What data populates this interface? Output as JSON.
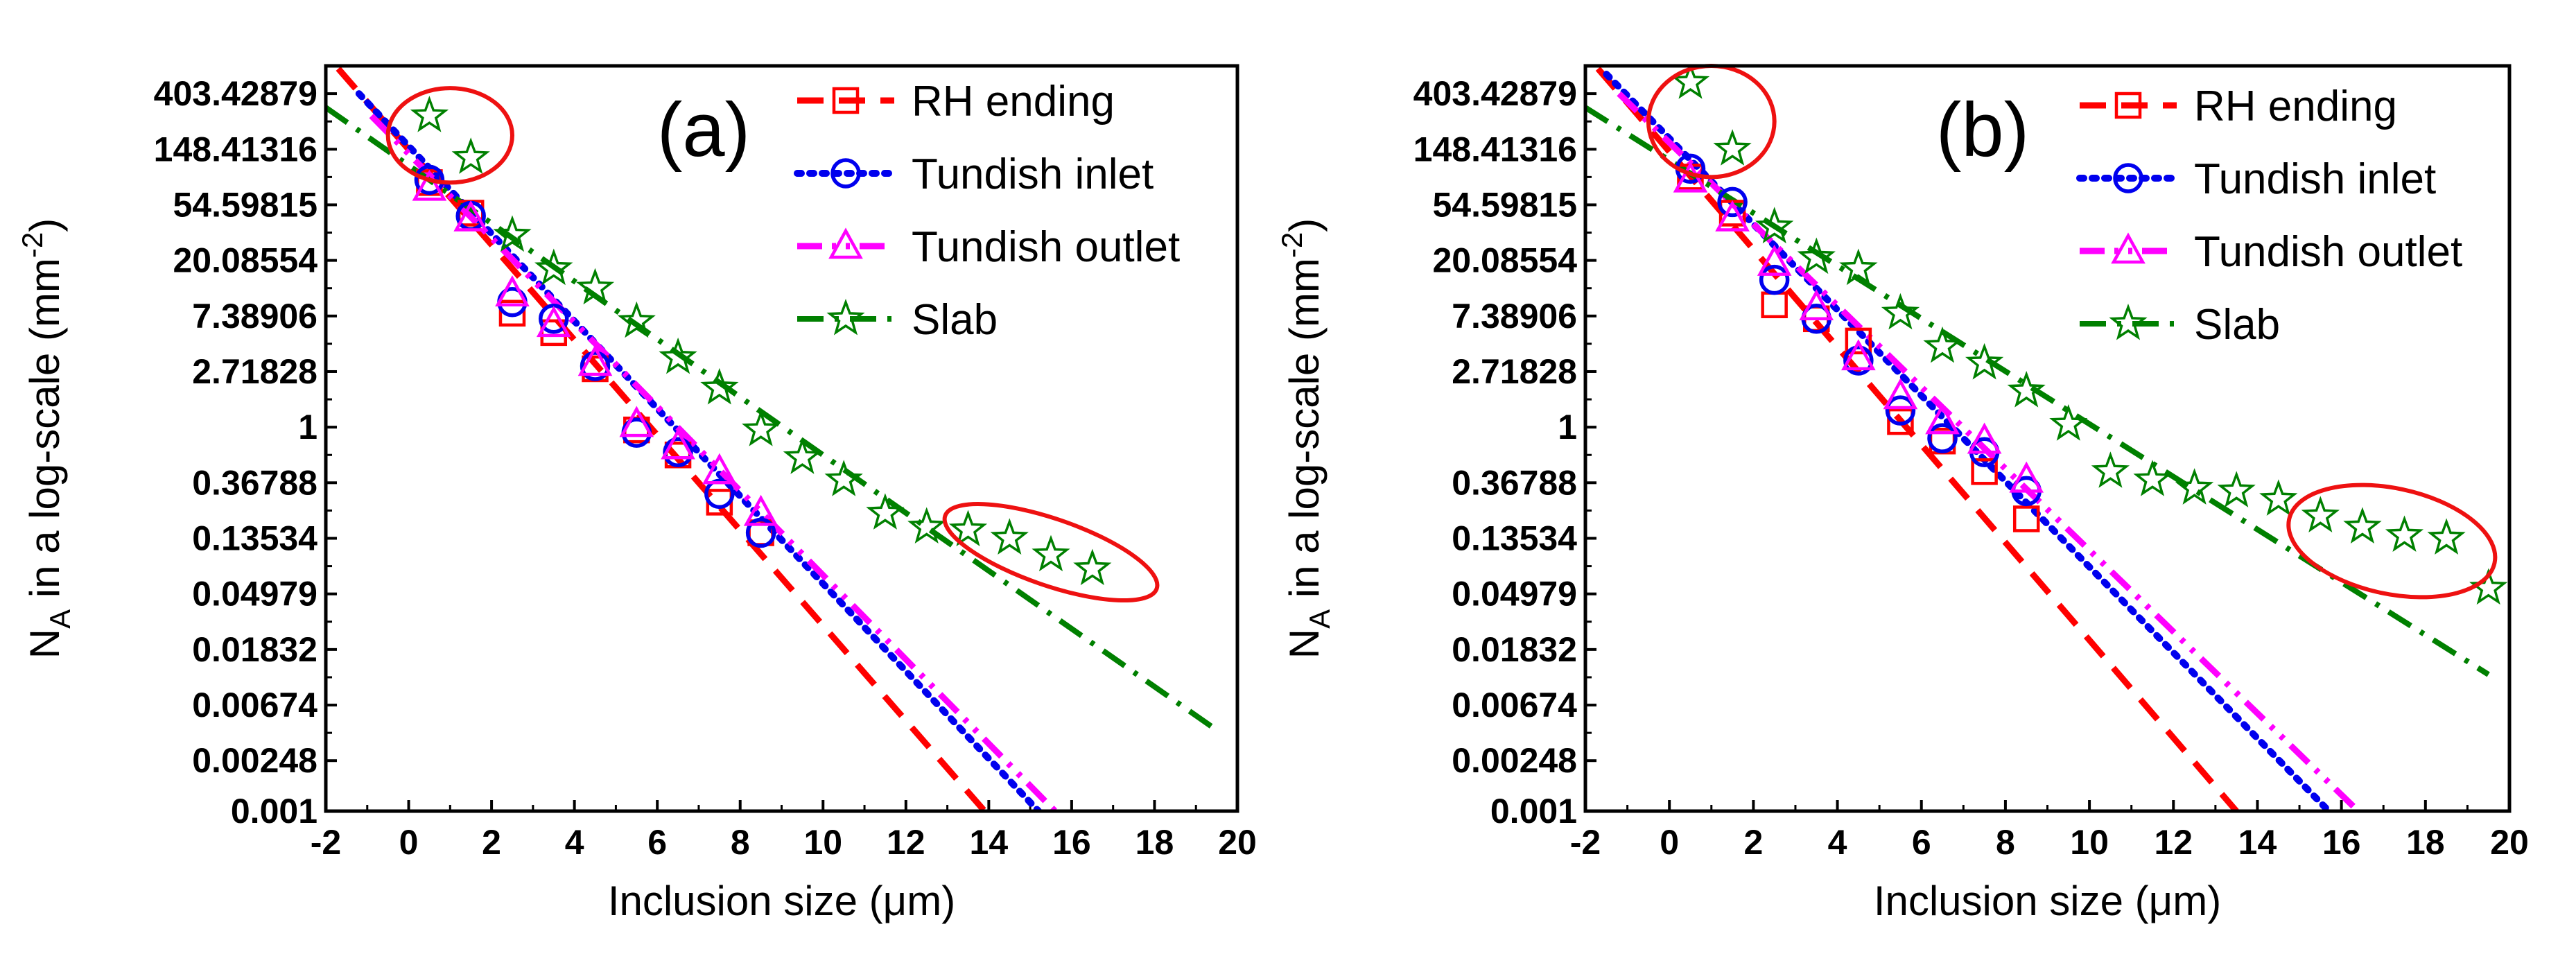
{
  "figure": {
    "panels": [
      "(a)",
      "(b)"
    ]
  },
  "colors": {
    "RH ending": "#ff0000",
    "Tundish inlet": "#0000ee",
    "Tundish outlet": "#ff00ff",
    "Slab": "#008000",
    "ellipse": "#ee1111"
  },
  "chart_data": [
    {
      "type": "scatter",
      "panel_label": "(a)",
      "xlabel": "Inclusion size (μm)",
      "ylabel_main": "N",
      "ylabel_sub": "A",
      "ylabel_rest": " in a log-scale (mm",
      "ylabel_sup": "-2",
      "ylabel_close": ")",
      "xlim": [
        -2,
        20
      ],
      "ylim_ln": [
        -6.9078,
        6.5
      ],
      "x_ticks": [
        -2,
        0,
        2,
        4,
        6,
        8,
        10,
        12,
        14,
        16,
        18,
        20
      ],
      "x_tick_labels": [
        "-2",
        "0",
        "2",
        "4",
        "6",
        "8",
        "10",
        "12",
        "14",
        "16",
        "18",
        "20"
      ],
      "y_ticks_ln": [
        6,
        5,
        4,
        3,
        2,
        1,
        0,
        -1,
        -2,
        -3,
        -4,
        -5,
        -6,
        -6.9078
      ],
      "y_tick_labels": [
        "403.42879",
        "148.41316",
        "54.59815",
        "20.08554",
        "7.38906",
        "2.71828",
        "1",
        "0.36788",
        "0.13534",
        "0.04979",
        "0.01832",
        "0.00674",
        "0.00248",
        "0.001"
      ],
      "legend": [
        "RH ending",
        "Tundish inlet",
        "Tundish outlet",
        "Slab"
      ],
      "series": [
        {
          "name": "RH ending",
          "marker": "square",
          "line": "dash",
          "x": [
            0.5,
            1.5,
            2.5,
            3.5,
            4.5,
            5.5,
            6.5,
            7.5,
            8.5
          ],
          "y_ln": [
            4.4,
            3.85,
            2.05,
            1.7,
            1.05,
            -0.05,
            -0.5,
            -1.35,
            -1.9
          ],
          "fit": {
            "x0": -1.7,
            "y0": 6.45,
            "x1": 13.9,
            "y1": -6.9078
          }
        },
        {
          "name": "Tundish inlet",
          "marker": "circle",
          "line": "dot",
          "x": [
            0.5,
            1.5,
            2.5,
            3.5,
            4.5,
            5.5,
            6.5,
            7.5,
            8.5
          ],
          "y_ln": [
            4.45,
            3.8,
            2.25,
            1.95,
            1.1,
            -0.1,
            -0.45,
            -1.2,
            -1.9
          ],
          "fit": {
            "x0": -1.2,
            "y0": 6.0,
            "x1": 15.2,
            "y1": -6.9078
          }
        },
        {
          "name": "Tundish outlet",
          "marker": "triangle",
          "line": "dashdotdot",
          "x": [
            0.5,
            1.5,
            2.5,
            3.5,
            4.5,
            5.5,
            6.5,
            7.5,
            8.5
          ],
          "y_ln": [
            4.3,
            3.75,
            2.4,
            1.85,
            1.15,
            0.05,
            -0.35,
            -0.8,
            -1.55
          ],
          "fit": {
            "x0": -0.9,
            "y0": 5.6,
            "x1": 15.6,
            "y1": -6.9078
          }
        },
        {
          "name": "Slab",
          "marker": "star",
          "line": "dashdot",
          "x": [
            0.5,
            1.5,
            2.5,
            3.5,
            4.5,
            5.5,
            6.5,
            7.5,
            8.5,
            9.5,
            10.5,
            11.5,
            12.5,
            13.5,
            14.5,
            15.5,
            16.5
          ],
          "y_ln": [
            5.6,
            4.85,
            3.45,
            2.85,
            2.5,
            1.9,
            1.25,
            0.7,
            -0.05,
            -0.55,
            -0.95,
            -1.55,
            -1.8,
            -1.85,
            -2.0,
            -2.3,
            -2.55
          ],
          "fit": {
            "x0": -2.0,
            "y0": 5.75,
            "x1": 19.5,
            "y1": -5.45
          }
        }
      ],
      "annotations": [
        {
          "type": "ellipse",
          "cx": 1.0,
          "cy_ln": 5.25,
          "rx": 1.5,
          "ry_ln": 0.85
        },
        {
          "type": "ellipse",
          "cx": 15.5,
          "cy_ln": -2.25,
          "rx": 2.7,
          "ry_ln": 0.6,
          "rotate": 19
        }
      ]
    },
    {
      "type": "scatter",
      "panel_label": "(b)",
      "xlabel": "Inclusion size (μm)",
      "ylabel_main": "N",
      "ylabel_sub": "A",
      "ylabel_rest": " in a log-scale (mm",
      "ylabel_sup": "-2",
      "ylabel_close": ")",
      "xlim": [
        -2,
        20
      ],
      "ylim_ln": [
        -6.9078,
        6.5
      ],
      "x_ticks": [
        -2,
        0,
        2,
        4,
        6,
        8,
        10,
        12,
        14,
        16,
        18,
        20
      ],
      "x_tick_labels": [
        "-2",
        "0",
        "2",
        "4",
        "6",
        "8",
        "10",
        "12",
        "14",
        "16",
        "18",
        "20"
      ],
      "y_ticks_ln": [
        6,
        5,
        4,
        3,
        2,
        1,
        0,
        -1,
        -2,
        -3,
        -4,
        -5,
        -6,
        -6.9078
      ],
      "y_tick_labels": [
        "403.42879",
        "148.41316",
        "54.59815",
        "20.08554",
        "7.38906",
        "2.71828",
        "1",
        "0.36788",
        "0.13534",
        "0.04979",
        "0.01832",
        "0.00674",
        "0.00248",
        "0.001"
      ],
      "legend": [
        "RH ending",
        "Tundish inlet",
        "Tundish outlet",
        "Slab"
      ],
      "series": [
        {
          "name": "RH ending",
          "marker": "square",
          "line": "dash",
          "x": [
            0.5,
            1.5,
            2.5,
            3.5,
            4.5,
            5.5,
            6.5,
            7.5,
            8.5
          ],
          "y_ln": [
            4.5,
            3.85,
            2.2,
            1.95,
            1.55,
            0.1,
            -0.25,
            -0.8,
            -1.65
          ],
          "fit": {
            "x0": -1.7,
            "y0": 6.45,
            "x1": 13.5,
            "y1": -6.9078
          }
        },
        {
          "name": "Tundish inlet",
          "marker": "circle",
          "line": "dot",
          "x": [
            0.5,
            1.5,
            2.5,
            3.5,
            4.5,
            5.5,
            6.5,
            7.5,
            8.5
          ],
          "y_ln": [
            4.65,
            4.05,
            2.65,
            1.95,
            1.2,
            0.3,
            -0.2,
            -0.45,
            -1.15
          ],
          "fit": {
            "x0": -1.5,
            "y0": 6.35,
            "x1": 15.7,
            "y1": -6.9078
          }
        },
        {
          "name": "Tundish outlet",
          "marker": "triangle",
          "line": "dashdotdot",
          "x": [
            0.5,
            1.5,
            2.5,
            3.5,
            4.5,
            5.5,
            6.5,
            7.5,
            8.5
          ],
          "y_ln": [
            4.45,
            3.75,
            2.95,
            2.15,
            1.25,
            0.55,
            0.1,
            -0.25,
            -0.95
          ],
          "fit": {
            "x0": -1.2,
            "y0": 6.0,
            "x1": 16.4,
            "y1": -6.9078
          }
        },
        {
          "name": "Slab",
          "marker": "star",
          "line": "dashdot",
          "x": [
            0.5,
            1.5,
            2.5,
            3.5,
            4.5,
            5.5,
            6.5,
            7.5,
            8.5,
            9.5,
            10.5,
            11.5,
            12.5,
            13.5,
            14.5,
            15.5,
            16.5,
            17.5,
            18.5,
            19.5
          ],
          "y_ln": [
            6.2,
            5.0,
            3.6,
            3.05,
            2.85,
            2.05,
            1.45,
            1.15,
            0.65,
            0.05,
            -0.8,
            -0.95,
            -1.1,
            -1.15,
            -1.3,
            -1.6,
            -1.8,
            -1.95,
            -2.0,
            -2.9
          ],
          "fit": {
            "x0": -2.0,
            "y0": 5.75,
            "x1": 19.5,
            "y1": -4.45
          }
        }
      ],
      "annotations": [
        {
          "type": "ellipse",
          "cx": 1.0,
          "cy_ln": 5.5,
          "rx": 1.5,
          "ry_ln": 1.0
        },
        {
          "type": "ellipse",
          "cx": 17.2,
          "cy_ln": -2.05,
          "rx": 2.5,
          "ry_ln": 0.95,
          "rotate": 12
        }
      ]
    }
  ]
}
